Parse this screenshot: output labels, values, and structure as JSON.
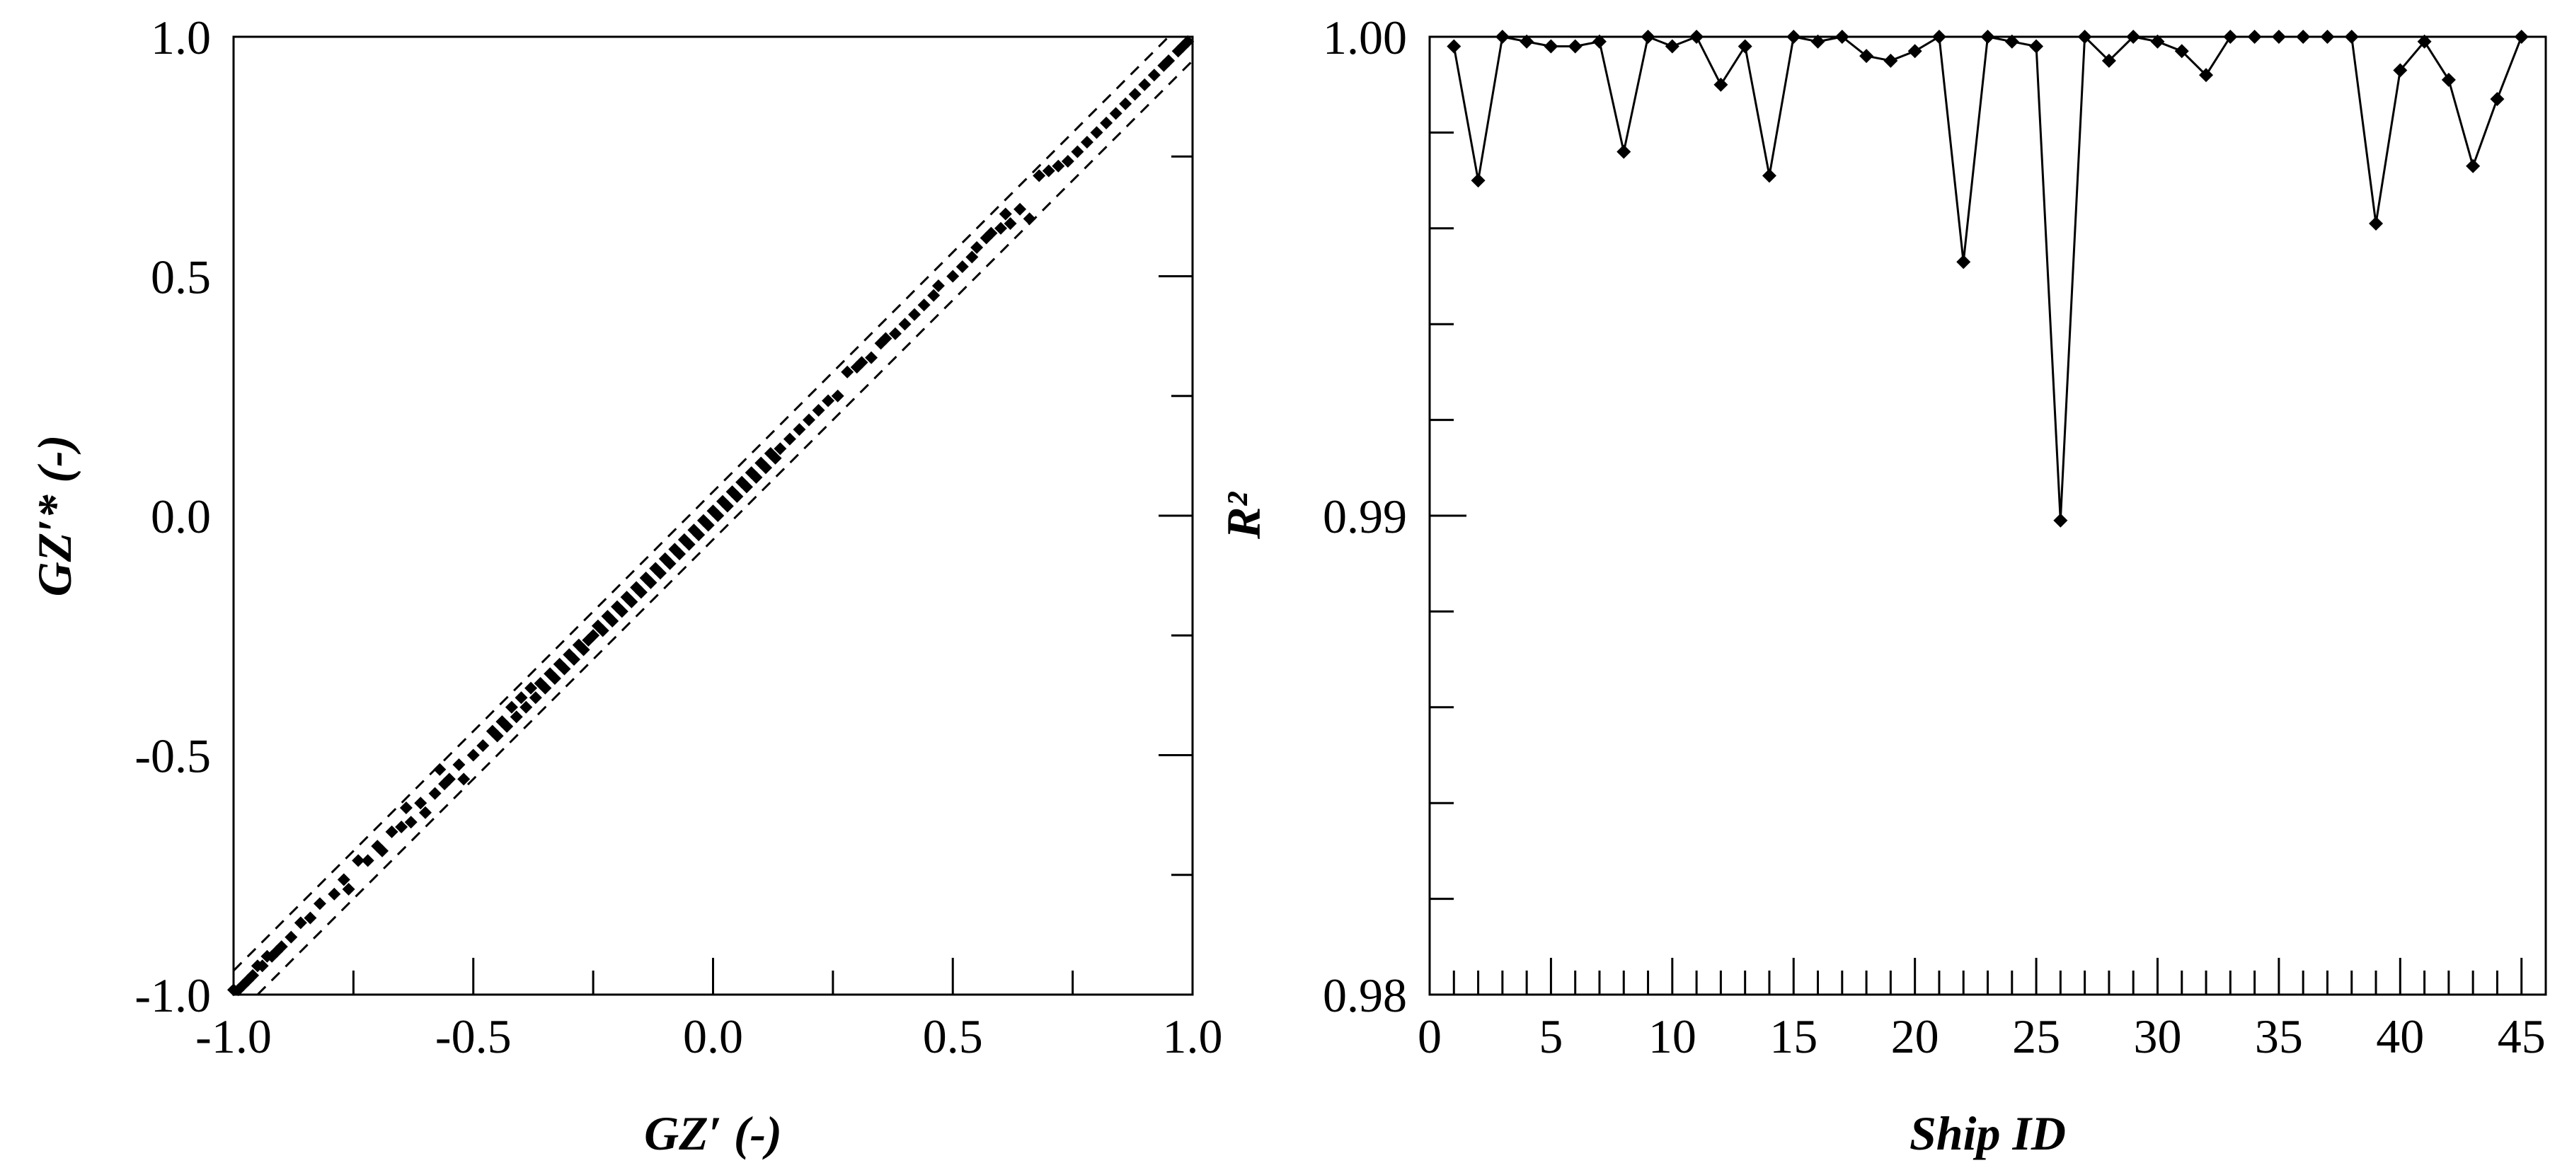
{
  "chart_data": [
    {
      "type": "scatter",
      "title": "",
      "xlabel": "GZ′ (-)",
      "ylabel": "GZ′* (-)",
      "xlim": [
        -1.0,
        1.0
      ],
      "ylim": [
        -1.0,
        1.0
      ],
      "xticks": [
        "-1.0",
        "-0.5",
        "0.0",
        "0.5",
        "1.0"
      ],
      "yticks": [
        "-1.0",
        "-0.5",
        "0.0",
        "0.5",
        "1.0"
      ],
      "xtick_values": [
        -1.0,
        -0.5,
        0.0,
        0.5,
        1.0
      ],
      "ytick_values": [
        -1.0,
        -0.5,
        0.0,
        0.5,
        1.0
      ],
      "minor_ticks": [
        -0.75,
        -0.25,
        0.25,
        0.75
      ],
      "grid": false,
      "reference_lines": [
        {
          "style": "dashed",
          "offset": 0.05
        },
        {
          "style": "dashed",
          "offset": -0.05
        }
      ],
      "points": [
        [
          -1.0,
          -0.99
        ],
        [
          -0.99,
          -0.99
        ],
        [
          -0.98,
          -0.98
        ],
        [
          -0.97,
          -0.97
        ],
        [
          -0.96,
          -0.96
        ],
        [
          -0.95,
          -0.94
        ],
        [
          -0.94,
          -0.94
        ],
        [
          -0.93,
          -0.92
        ],
        [
          -0.92,
          -0.92
        ],
        [
          -0.91,
          -0.91
        ],
        [
          -0.9,
          -0.9
        ],
        [
          -0.88,
          -0.88
        ],
        [
          -0.86,
          -0.85
        ],
        [
          -0.84,
          -0.84
        ],
        [
          -0.82,
          -0.81
        ],
        [
          -0.79,
          -0.79
        ],
        [
          -0.77,
          -0.76
        ],
        [
          -0.76,
          -0.78
        ],
        [
          -0.74,
          -0.72
        ],
        [
          -0.72,
          -0.72
        ],
        [
          -0.7,
          -0.69
        ],
        [
          -0.69,
          -0.7
        ],
        [
          -0.67,
          -0.66
        ],
        [
          -0.65,
          -0.65
        ],
        [
          -0.64,
          -0.61
        ],
        [
          -0.63,
          -0.64
        ],
        [
          -0.61,
          -0.6
        ],
        [
          -0.6,
          -0.62
        ],
        [
          -0.58,
          -0.58
        ],
        [
          -0.57,
          -0.53
        ],
        [
          -0.56,
          -0.56
        ],
        [
          -0.55,
          -0.55
        ],
        [
          -0.53,
          -0.52
        ],
        [
          -0.52,
          -0.55
        ],
        [
          -0.5,
          -0.5
        ],
        [
          -0.48,
          -0.48
        ],
        [
          -0.46,
          -0.45
        ],
        [
          -0.45,
          -0.46
        ],
        [
          -0.44,
          -0.43
        ],
        [
          -0.43,
          -0.44
        ],
        [
          -0.42,
          -0.4
        ],
        [
          -0.41,
          -0.42
        ],
        [
          -0.4,
          -0.38
        ],
        [
          -0.39,
          -0.4
        ],
        [
          -0.38,
          -0.36
        ],
        [
          -0.37,
          -0.38
        ],
        [
          -0.36,
          -0.35
        ],
        [
          -0.35,
          -0.36
        ],
        [
          -0.34,
          -0.33
        ],
        [
          -0.33,
          -0.34
        ],
        [
          -0.32,
          -0.31
        ],
        [
          -0.31,
          -0.32
        ],
        [
          -0.3,
          -0.29
        ],
        [
          -0.29,
          -0.3
        ],
        [
          -0.28,
          -0.27
        ],
        [
          -0.27,
          -0.28
        ],
        [
          -0.26,
          -0.26
        ],
        [
          -0.25,
          -0.25
        ],
        [
          -0.24,
          -0.23
        ],
        [
          -0.23,
          -0.24
        ],
        [
          -0.22,
          -0.21
        ],
        [
          -0.21,
          -0.22
        ],
        [
          -0.2,
          -0.19
        ],
        [
          -0.19,
          -0.2
        ],
        [
          -0.18,
          -0.17
        ],
        [
          -0.17,
          -0.18
        ],
        [
          -0.16,
          -0.15
        ],
        [
          -0.15,
          -0.16
        ],
        [
          -0.14,
          -0.13
        ],
        [
          -0.13,
          -0.14
        ],
        [
          -0.12,
          -0.11
        ],
        [
          -0.11,
          -0.12
        ],
        [
          -0.1,
          -0.09
        ],
        [
          -0.09,
          -0.1
        ],
        [
          -0.08,
          -0.07
        ],
        [
          -0.07,
          -0.08
        ],
        [
          -0.06,
          -0.05
        ],
        [
          -0.05,
          -0.06
        ],
        [
          -0.04,
          -0.03
        ],
        [
          -0.03,
          -0.04
        ],
        [
          -0.02,
          -0.01
        ],
        [
          -0.01,
          -0.02
        ],
        [
          0.0,
          0.01
        ],
        [
          0.01,
          0.0
        ],
        [
          0.02,
          0.03
        ],
        [
          0.03,
          0.02
        ],
        [
          0.04,
          0.05
        ],
        [
          0.05,
          0.04
        ],
        [
          0.06,
          0.07
        ],
        [
          0.07,
          0.06
        ],
        [
          0.08,
          0.09
        ],
        [
          0.09,
          0.08
        ],
        [
          0.1,
          0.11
        ],
        [
          0.11,
          0.1
        ],
        [
          0.12,
          0.13
        ],
        [
          0.13,
          0.12
        ],
        [
          0.14,
          0.14
        ],
        [
          0.16,
          0.16
        ],
        [
          0.18,
          0.18
        ],
        [
          0.2,
          0.2
        ],
        [
          0.22,
          0.22
        ],
        [
          0.24,
          0.24
        ],
        [
          0.26,
          0.25
        ],
        [
          0.28,
          0.3
        ],
        [
          0.3,
          0.31
        ],
        [
          0.31,
          0.32
        ],
        [
          0.33,
          0.33
        ],
        [
          0.35,
          0.36
        ],
        [
          0.36,
          0.37
        ],
        [
          0.38,
          0.38
        ],
        [
          0.4,
          0.4
        ],
        [
          0.42,
          0.42
        ],
        [
          0.44,
          0.44
        ],
        [
          0.46,
          0.46
        ],
        [
          0.47,
          0.48
        ],
        [
          0.5,
          0.5
        ],
        [
          0.52,
          0.52
        ],
        [
          0.54,
          0.54
        ],
        [
          0.55,
          0.56
        ],
        [
          0.57,
          0.58
        ],
        [
          0.58,
          0.59
        ],
        [
          0.6,
          0.6
        ],
        [
          0.61,
          0.63
        ],
        [
          0.62,
          0.61
        ],
        [
          0.64,
          0.64
        ],
        [
          0.66,
          0.62
        ],
        [
          0.68,
          0.71
        ],
        [
          0.7,
          0.72
        ],
        [
          0.72,
          0.73
        ],
        [
          0.74,
          0.74
        ],
        [
          0.76,
          0.76
        ],
        [
          0.78,
          0.78
        ],
        [
          0.8,
          0.8
        ],
        [
          0.82,
          0.82
        ],
        [
          0.84,
          0.84
        ],
        [
          0.86,
          0.86
        ],
        [
          0.88,
          0.88
        ],
        [
          0.9,
          0.9
        ],
        [
          0.92,
          0.92
        ],
        [
          0.94,
          0.94
        ],
        [
          0.95,
          0.95
        ],
        [
          0.97,
          0.97
        ],
        [
          0.98,
          0.98
        ],
        [
          0.99,
          0.99
        ]
      ]
    },
    {
      "type": "line",
      "title": "",
      "xlabel": "Ship ID",
      "ylabel": "R²",
      "xlim": [
        0,
        46
      ],
      "ylim": [
        0.98,
        1.0
      ],
      "xticks": [
        "0",
        "5",
        "10",
        "15",
        "20",
        "25",
        "30",
        "35",
        "40",
        "45"
      ],
      "yticks": [
        "0.98",
        "0.99",
        "1.00"
      ],
      "xtick_values": [
        0,
        5,
        10,
        15,
        20,
        25,
        30,
        35,
        40,
        45
      ],
      "ytick_values": [
        0.98,
        0.99,
        1.0
      ],
      "minor_ytick_values": [
        0.982,
        0.984,
        0.986,
        0.988,
        0.992,
        0.994,
        0.996,
        0.998
      ],
      "grid": false,
      "marker": "diamond",
      "x": [
        1,
        2,
        3,
        4,
        5,
        6,
        7,
        8,
        9,
        10,
        11,
        12,
        13,
        14,
        15,
        16,
        17,
        18,
        19,
        20,
        21,
        22,
        23,
        24,
        25,
        26,
        27,
        28,
        29,
        30,
        31,
        32,
        33,
        34,
        35,
        36,
        37,
        38,
        39,
        40,
        41,
        42,
        43,
        44,
        45
      ],
      "values": [
        0.9998,
        0.997,
        1.0,
        0.9999,
        0.9998,
        0.9998,
        0.9999,
        0.9976,
        1.0,
        0.9998,
        1.0,
        0.999,
        0.9998,
        0.9971,
        1.0,
        0.9999,
        1.0,
        0.9996,
        0.9995,
        0.9997,
        1.0,
        0.9953,
        1.0,
        0.9999,
        0.9998,
        0.9899,
        1.0,
        0.9995,
        1.0,
        0.9999,
        0.9997,
        0.9992,
        1.0,
        1.0,
        1.0,
        1.0,
        1.0,
        1.0,
        0.9961,
        0.9993,
        0.9999,
        0.9991,
        0.9973,
        0.9987,
        1.0
      ]
    }
  ]
}
